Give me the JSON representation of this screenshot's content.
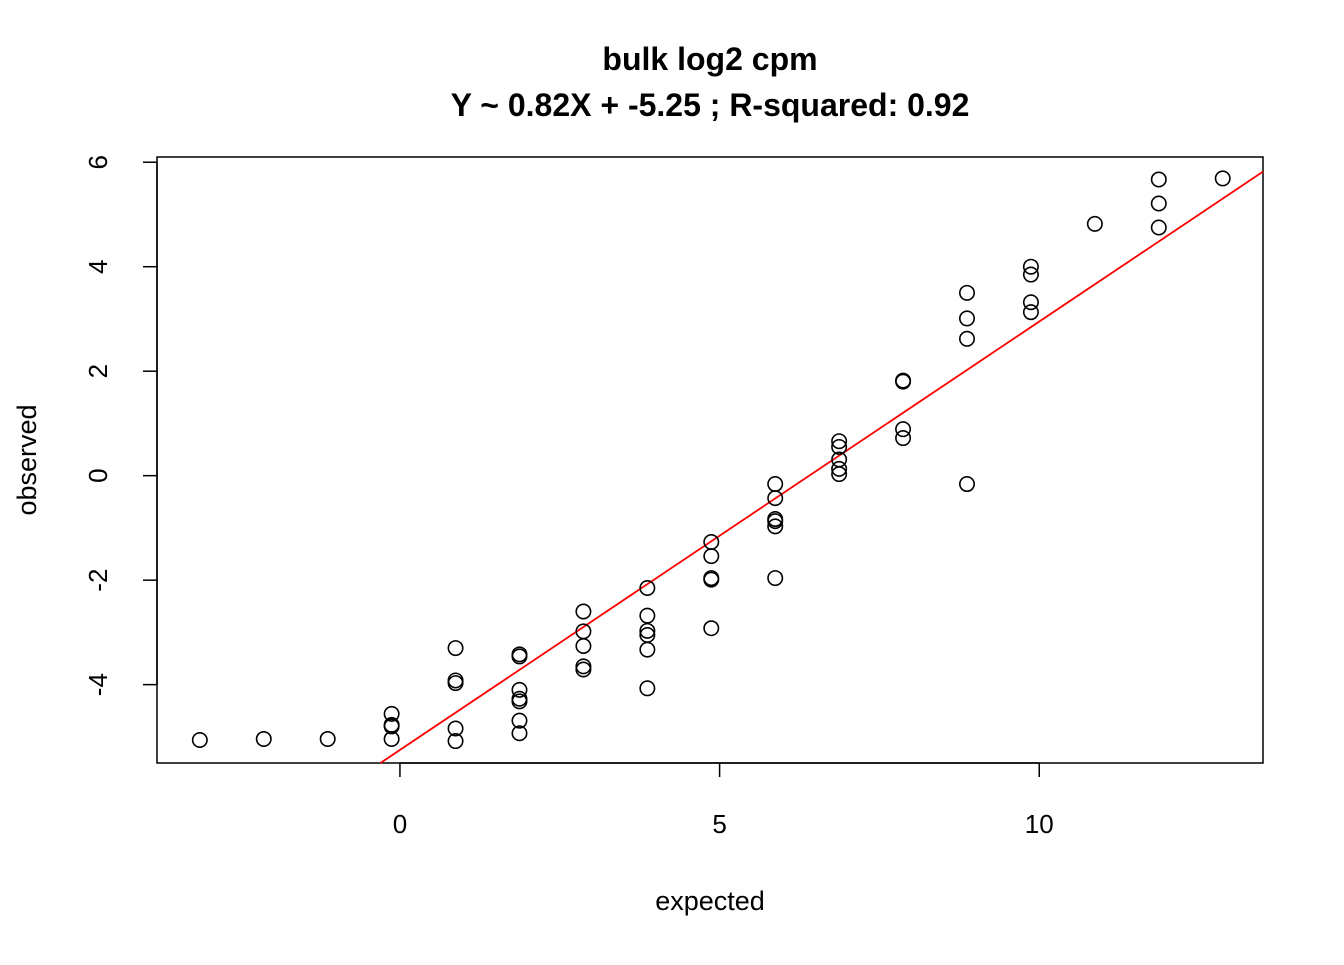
{
  "chart_data": {
    "type": "scatter",
    "title": "bulk log2 cpm",
    "subtitle": "Y ~ 0.82X + -5.25 ; R-squared: 0.92",
    "xlabel": "expected",
    "ylabel": "observed",
    "xlim": [
      -3.8,
      13.5
    ],
    "ylim": [
      -5.5,
      6.1
    ],
    "x_ticks": [
      0,
      5,
      10
    ],
    "y_ticks": [
      -4,
      -2,
      0,
      2,
      4,
      6
    ],
    "grid": false,
    "legend": "none",
    "point_color": "#000000",
    "fit_color": "#ff0000",
    "fit_line": {
      "slope": 0.82,
      "intercept": -5.25
    },
    "points": [
      {
        "x": -3.13,
        "y": -5.06
      },
      {
        "x": -2.13,
        "y": -5.04
      },
      {
        "x": -1.13,
        "y": -5.04
      },
      {
        "x": -0.13,
        "y": -4.56
      },
      {
        "x": -0.13,
        "y": -4.77
      },
      {
        "x": -0.13,
        "y": -4.8
      },
      {
        "x": -0.13,
        "y": -5.04
      },
      {
        "x": 0.87,
        "y": -3.3
      },
      {
        "x": 0.87,
        "y": -3.92
      },
      {
        "x": 0.87,
        "y": -3.97
      },
      {
        "x": 0.87,
        "y": -4.84
      },
      {
        "x": 0.87,
        "y": -5.08
      },
      {
        "x": 1.87,
        "y": -3.42
      },
      {
        "x": 1.87,
        "y": -3.46
      },
      {
        "x": 1.87,
        "y": -4.1
      },
      {
        "x": 1.87,
        "y": -4.27
      },
      {
        "x": 1.87,
        "y": -4.32
      },
      {
        "x": 1.87,
        "y": -4.69
      },
      {
        "x": 1.87,
        "y": -4.93
      },
      {
        "x": 2.87,
        "y": -2.6
      },
      {
        "x": 2.87,
        "y": -2.98
      },
      {
        "x": 2.87,
        "y": -3.26
      },
      {
        "x": 2.87,
        "y": -3.65
      },
      {
        "x": 2.87,
        "y": -3.71
      },
      {
        "x": 3.87,
        "y": -2.15
      },
      {
        "x": 3.87,
        "y": -2.68
      },
      {
        "x": 3.87,
        "y": -2.97
      },
      {
        "x": 3.87,
        "y": -3.05
      },
      {
        "x": 3.87,
        "y": -3.33
      },
      {
        "x": 3.87,
        "y": -4.07
      },
      {
        "x": 4.87,
        "y": -1.27
      },
      {
        "x": 4.87,
        "y": -1.54
      },
      {
        "x": 4.87,
        "y": -1.96
      },
      {
        "x": 4.87,
        "y": -1.99
      },
      {
        "x": 4.87,
        "y": -2.92
      },
      {
        "x": 5.87,
        "y": -0.16
      },
      {
        "x": 5.87,
        "y": -0.43
      },
      {
        "x": 5.87,
        "y": -0.83
      },
      {
        "x": 5.87,
        "y": -0.87
      },
      {
        "x": 5.87,
        "y": -0.97
      },
      {
        "x": 5.87,
        "y": -1.96
      },
      {
        "x": 6.87,
        "y": 0.66
      },
      {
        "x": 6.87,
        "y": 0.55
      },
      {
        "x": 6.87,
        "y": 0.31
      },
      {
        "x": 6.87,
        "y": 0.13
      },
      {
        "x": 6.87,
        "y": 0.03
      },
      {
        "x": 7.87,
        "y": 1.82
      },
      {
        "x": 7.87,
        "y": 1.8
      },
      {
        "x": 7.87,
        "y": 0.89
      },
      {
        "x": 7.87,
        "y": 0.72
      },
      {
        "x": 8.87,
        "y": 3.5
      },
      {
        "x": 8.87,
        "y": 3.01
      },
      {
        "x": 8.87,
        "y": 2.62
      },
      {
        "x": 8.87,
        "y": -0.16
      },
      {
        "x": 9.87,
        "y": 4.0
      },
      {
        "x": 9.87,
        "y": 3.85
      },
      {
        "x": 9.87,
        "y": 3.32
      },
      {
        "x": 9.87,
        "y": 3.13
      },
      {
        "x": 10.87,
        "y": 4.82
      },
      {
        "x": 11.87,
        "y": 5.67
      },
      {
        "x": 11.87,
        "y": 5.21
      },
      {
        "x": 11.87,
        "y": 4.75
      },
      {
        "x": 12.87,
        "y": 5.69
      }
    ]
  }
}
